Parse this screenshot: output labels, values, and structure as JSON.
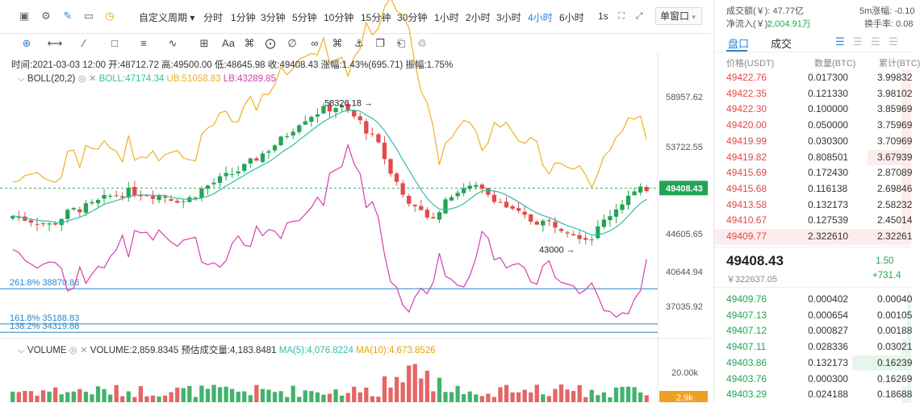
{
  "toolbar": {
    "custom_period": "自定义周期",
    "periods": [
      "分时",
      "1分钟",
      "3分钟",
      "5分钟",
      "10分钟",
      "15分钟",
      "30分钟",
      "1小时",
      "2小时",
      "3小时",
      "4小时",
      "6小时",
      "1s"
    ],
    "selected_period": "4小时",
    "window_mode": "单窗口"
  },
  "ohlc": {
    "text": "时间:2021-03-03 12:00  开:48712.72  高:49500.00  低:48645.98  收:49408.43  涨幅:1.43%(695.71)  振幅:1.75%"
  },
  "boll": {
    "name": "BOLL(20,2)",
    "mid": "BOLL:47174.34",
    "up": "UB:51058.83",
    "low": "LB:43289.85"
  },
  "price_axis": {
    "labels": [
      "58957.62",
      "53722.55",
      "44605.65",
      "40644.94",
      "37035.92"
    ],
    "current": "49408.43"
  },
  "annotations": {
    "high": "58326.18 →",
    "low": "43000 →"
  },
  "fibonacci": [
    {
      "label": "261.8% 38870.86"
    },
    {
      "label": "161.8% 35188.83"
    },
    {
      "label": "138.2% 34319.88"
    }
  ],
  "volume": {
    "name": "VOLUME",
    "value": "VOLUME:2,859.8345",
    "est": "预估成交量:4,183.8481",
    "ma5": "MA(5):4,076.8224",
    "ma10": "MA(10):4,673.8526",
    "axis_label": "20.00k",
    "current": "2.9k"
  },
  "colors": {
    "up": "#23a455",
    "down": "#e04a4a",
    "mid": "#2fbfa8",
    "upper": "#f0b020",
    "lower": "#d43fb0",
    "fib": "#2a86c8",
    "accent": "#2f7fd6"
  },
  "market": {
    "turnover": "成交额(￥): 47.77亿",
    "inflow_label": "净流入(￥):",
    "inflow": "2,004.91万",
    "change5m": "5m涨幅: -0.10",
    "turnover_rate": "换手率: 0.08"
  },
  "orderbook": {
    "tab_book": "盘口",
    "tab_trades": "成交",
    "col_price": "价格(USDT)",
    "col_qty": "数量(BTC)",
    "col_total": "累计(BTC)",
    "asks": [
      {
        "p": "49422.76",
        "q": "0.017300",
        "t": "3.99832",
        "d": 0.05
      },
      {
        "p": "49422.35",
        "q": "0.121330",
        "t": "3.98102",
        "d": 0.05
      },
      {
        "p": "49422.30",
        "q": "0.100000",
        "t": "3.85969",
        "d": 0.05
      },
      {
        "p": "49420.00",
        "q": "0.050000",
        "t": "3.75969",
        "d": 0.05
      },
      {
        "p": "49419.99",
        "q": "0.030300",
        "t": "3.70969",
        "d": 0.05
      },
      {
        "p": "49419.82",
        "q": "0.808501",
        "t": "3.67939",
        "d": 0.22
      },
      {
        "p": "49415.69",
        "q": "0.172430",
        "t": "2.87089",
        "d": 0.05
      },
      {
        "p": "49415.68",
        "q": "0.116138",
        "t": "2.69846",
        "d": 0.05
      },
      {
        "p": "49413.58",
        "q": "0.132173",
        "t": "2.58232",
        "d": 0.05
      },
      {
        "p": "49410.67",
        "q": "0.127539",
        "t": "2.45014",
        "d": 0.05
      },
      {
        "p": "49409.77",
        "q": "2.322610",
        "t": "2.32261",
        "d": 1
      }
    ],
    "last": "49408.43",
    "last_cny": "￥322637.05",
    "chg_pct": "1.50",
    "chg_abs": "+731.4",
    "bids": [
      {
        "p": "49409.76",
        "q": "0.000402",
        "t": "0.00040",
        "d": 0.02
      },
      {
        "p": "49407.13",
        "q": "0.000654",
        "t": "0.00105",
        "d": 0.02
      },
      {
        "p": "49407.12",
        "q": "0.000827",
        "t": "0.00188",
        "d": 0.02
      },
      {
        "p": "49407.11",
        "q": "0.028336",
        "t": "0.03021",
        "d": 0.05
      },
      {
        "p": "49403.86",
        "q": "0.132173",
        "t": "0.16239",
        "d": 0.3
      },
      {
        "p": "49403.76",
        "q": "0.000300",
        "t": "0.16269",
        "d": 0.02
      },
      {
        "p": "49403.29",
        "q": "0.024188",
        "t": "0.18688",
        "d": 0.05
      }
    ]
  }
}
